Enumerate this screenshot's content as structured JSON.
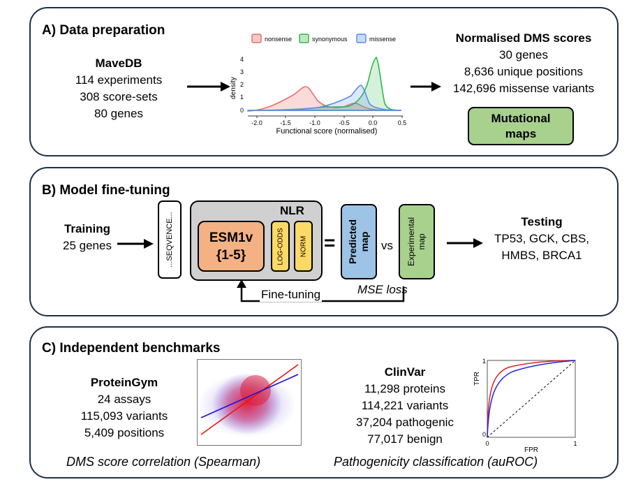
{
  "panelA": {
    "title": "A) Data preparation",
    "mavedb": {
      "heading": "MaveDB",
      "lines": [
        "114 experiments",
        "308 score-sets",
        "80 genes"
      ]
    },
    "plot": {
      "legend": [
        "nonsense",
        "synonymous",
        "missense"
      ],
      "xlabel": "Functional score (normalised)",
      "ylabel": "density",
      "xticks": [
        "-2.0",
        "-1.5",
        "-1.0",
        "-0.5",
        "0.0",
        "0.5"
      ],
      "yticks": [
        "0",
        "1",
        "2",
        "3",
        "4"
      ],
      "colors": {
        "nonsense": "#e8706b",
        "synonymous": "#2db84a",
        "missense": "#5a8ef0"
      }
    },
    "dms": {
      "heading": "Normalised DMS scores",
      "lines": [
        "30 genes",
        "8,636 unique positions",
        "142,696 missense variants"
      ]
    },
    "maps_button": "Mutational maps"
  },
  "panelB": {
    "title": "B) Model fine-tuning",
    "training": {
      "heading": "Training",
      "line": "25 genes"
    },
    "sequence_label": "...SEQVENCE...",
    "nlr_label": "NLR",
    "esm_line1": "ESM1v",
    "esm_line2": "{1-5}",
    "logodds_label": "LOG-ODDS",
    "norm_label": "NORM",
    "equals": "=",
    "predicted_label_1": "Predicted",
    "predicted_label_2": "map",
    "vs": "vs",
    "experimental_label_1": "Experimental",
    "experimental_label_2": "map",
    "mse_loss": "MSE loss",
    "fine_tuning": "Fine-tuning",
    "testing": {
      "heading": "Testing",
      "lines": [
        "TP53, GCK, CBS,",
        "HMBS, BRCA1"
      ]
    }
  },
  "panelC": {
    "title": "C) Independent benchmarks",
    "proteingym": {
      "heading": "ProteinGym",
      "lines": [
        "24 assays",
        "115,093 variants",
        "5,409 positions"
      ]
    },
    "clinvar": {
      "heading": "ClinVar",
      "lines": [
        "11,298 proteins",
        "114,221 variants",
        "37,204 pathogenic",
        "77,017 benign"
      ]
    },
    "caption_left": "DMS score correlation (Spearman)",
    "caption_right": "Pathogenicity classification (auROC)",
    "roc": {
      "xlabel": "FPR",
      "ylabel": "TPR",
      "ticks": [
        "0",
        "1"
      ],
      "colors": [
        "#e02020",
        "#2020e0"
      ]
    }
  }
}
